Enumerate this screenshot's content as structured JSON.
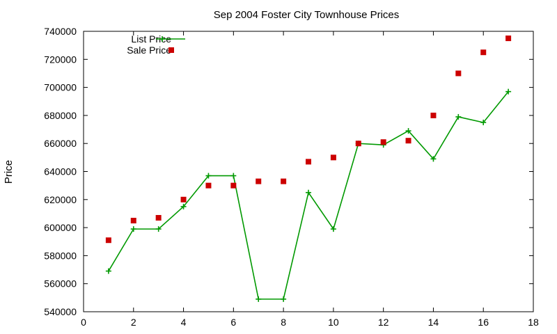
{
  "chart_data": {
    "type": "line",
    "title": "Sep 2004 Foster City Townhouse Prices",
    "xlabel": "",
    "ylabel": "Price",
    "xlim": [
      0,
      18
    ],
    "ylim": [
      540000,
      740000
    ],
    "x_ticks": [
      0,
      2,
      4,
      6,
      8,
      10,
      12,
      14,
      16,
      18
    ],
    "y_ticks": [
      540000,
      560000,
      580000,
      600000,
      620000,
      640000,
      660000,
      680000,
      700000,
      720000,
      740000
    ],
    "x_tick_labels": [
      "0",
      "2",
      "4",
      "6",
      "8",
      "10",
      "12",
      "14",
      "16",
      "18"
    ],
    "y_tick_labels": [
      "540000",
      "560000",
      "580000",
      "600000",
      "620000",
      "640000",
      "660000",
      "680000",
      "700000",
      "720000",
      "740000"
    ],
    "grid": false,
    "legend_position": "top-left",
    "series": [
      {
        "name": "List Price",
        "style": "linespoints",
        "color": "#009900",
        "marker": "plus",
        "x": [
          1,
          2,
          3,
          4,
          5,
          6,
          7,
          8,
          9,
          10,
          11,
          12,
          13,
          14,
          15,
          16,
          17
        ],
        "y": [
          569000,
          599000,
          599000,
          615000,
          637000,
          637000,
          549000,
          549000,
          625000,
          599000,
          660000,
          659000,
          669000,
          649000,
          679000,
          675000,
          697000
        ]
      },
      {
        "name": "Sale Price",
        "style": "points",
        "color": "#cc0000",
        "marker": "square",
        "x": [
          1,
          2,
          3,
          4,
          5,
          6,
          7,
          8,
          9,
          10,
          11,
          12,
          13,
          14,
          15,
          16,
          17
        ],
        "y": [
          591000,
          605000,
          607000,
          620000,
          630000,
          630000,
          633000,
          633000,
          647000,
          650000,
          660000,
          661000,
          662000,
          680000,
          710000,
          725000,
          735000
        ]
      }
    ]
  }
}
